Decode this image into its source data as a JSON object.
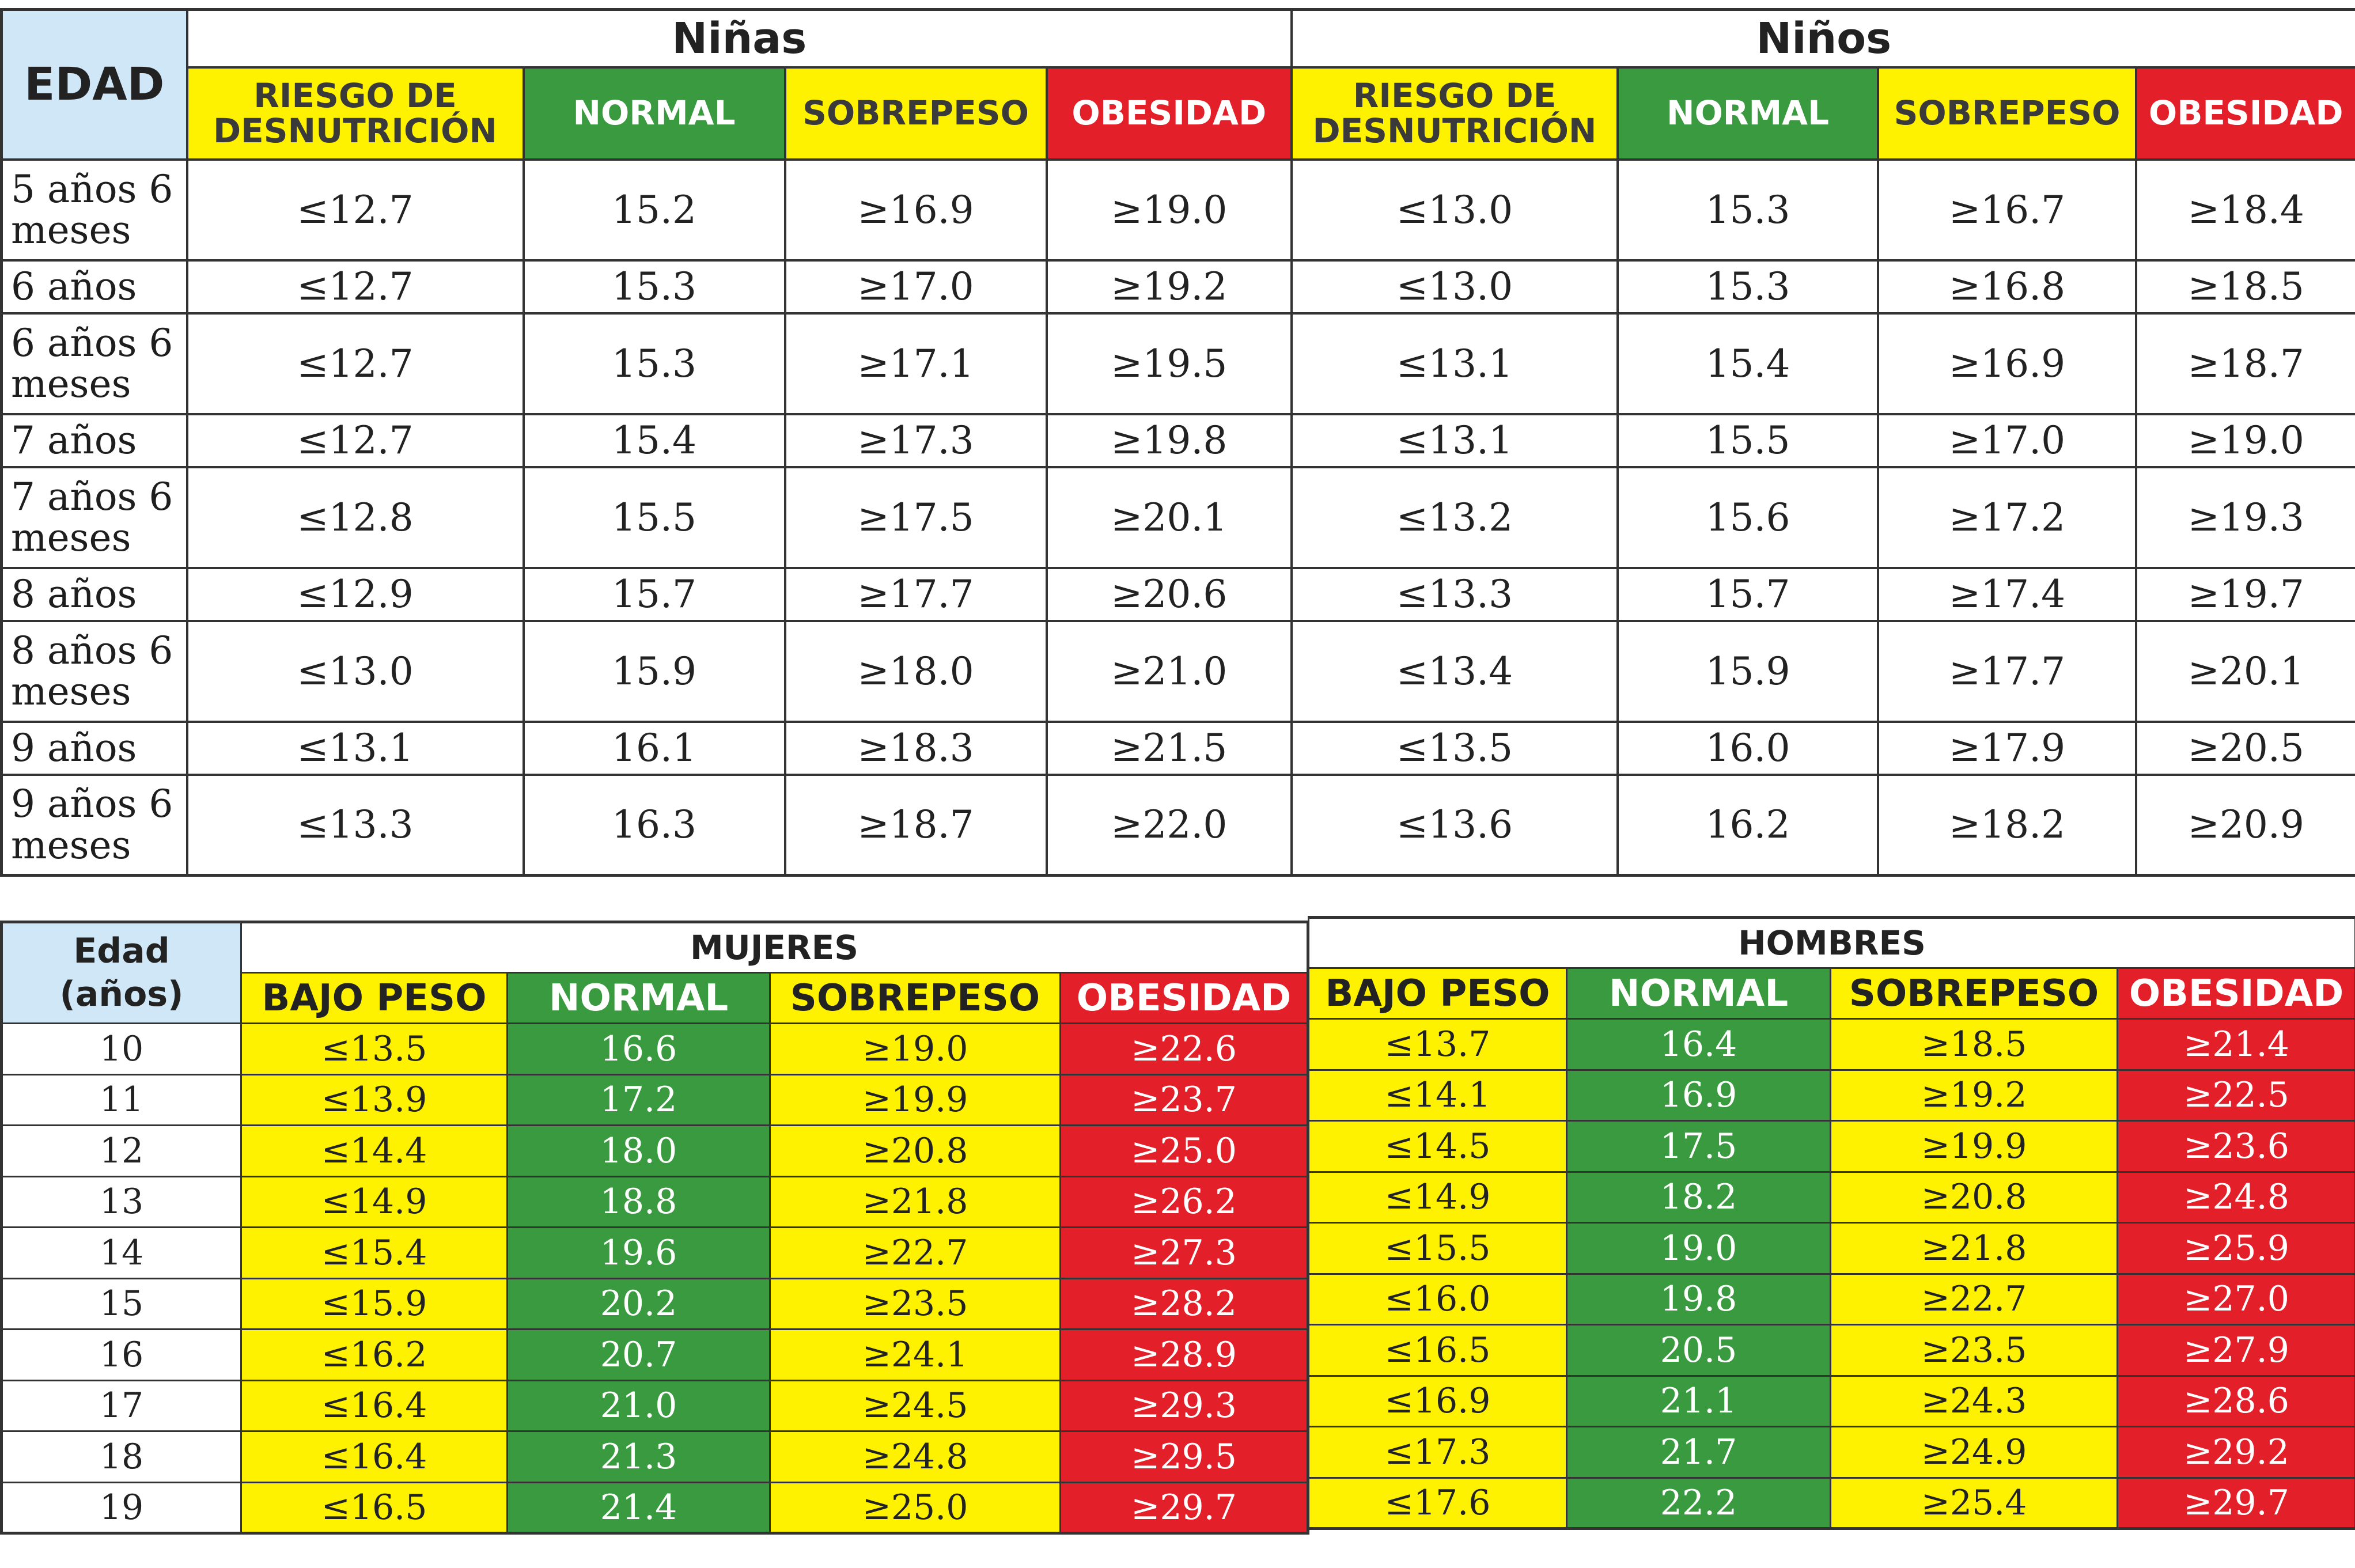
{
  "top": {
    "edad_label": "EDAD",
    "girls": {
      "title": "Niñas",
      "headers": [
        "RIESGO DE DESNUTRICIÓN",
        "NORMAL",
        "SOBREPESO",
        "OBESIDAD"
      ],
      "rows": [
        {
          "age": "5 años 6 meses",
          "values": [
            "≤12.7",
            "15.2",
            "≥16.9",
            "≥19.0"
          ]
        },
        {
          "age": "6 años",
          "values": [
            "≤12.7",
            "15.3",
            "≥17.0",
            "≥19.2"
          ]
        },
        {
          "age": "6 años 6 meses",
          "values": [
            "≤12.7",
            "15.3",
            "≥17.1",
            "≥19.5"
          ]
        },
        {
          "age": "7 años",
          "values": [
            "≤12.7",
            "15.4",
            "≥17.3",
            "≥19.8"
          ]
        },
        {
          "age": "7 años 6 meses",
          "values": [
            "≤12.8",
            "15.5",
            "≥17.5",
            "≥20.1"
          ]
        },
        {
          "age": "8 años",
          "values": [
            "≤12.9",
            "15.7",
            "≥17.7",
            "≥20.6"
          ]
        },
        {
          "age": "8 años 6 meses",
          "values": [
            "≤13.0",
            "15.9",
            "≥18.0",
            "≥21.0"
          ]
        },
        {
          "age": "9 años",
          "values": [
            "≤13.1",
            "16.1",
            "≥18.3",
            "≥21.5"
          ]
        },
        {
          "age": "9 años 6 meses",
          "values": [
            "≤13.3",
            "16.3",
            "≥18.7",
            "≥22.0"
          ]
        }
      ]
    },
    "boys": {
      "title": "Niños",
      "headers": [
        "RIESGO DE DESNUTRICIÓN",
        "NORMAL",
        "SOBREPESO",
        "OBESIDAD"
      ],
      "rows": [
        {
          "values": [
            "≤13.0",
            "15.3",
            "≥16.7",
            "≥18.4"
          ]
        },
        {
          "values": [
            "≤13.0",
            "15.3",
            "≥16.8",
            "≥18.5"
          ]
        },
        {
          "values": [
            "≤13.1",
            "15.4",
            "≥16.9",
            "≥18.7"
          ]
        },
        {
          "values": [
            "≤13.1",
            "15.5",
            "≥17.0",
            "≥19.0"
          ]
        },
        {
          "values": [
            "≤13.2",
            "15.6",
            "≥17.2",
            "≥19.3"
          ]
        },
        {
          "values": [
            "≤13.3",
            "15.7",
            "≥17.4",
            "≥19.7"
          ]
        },
        {
          "values": [
            "≤13.4",
            "15.9",
            "≥17.7",
            "≥20.1"
          ]
        },
        {
          "values": [
            "≤13.5",
            "16.0",
            "≥17.9",
            "≥20.5"
          ]
        },
        {
          "values": [
            "≤13.6",
            "16.2",
            "≥18.2",
            "≥20.9"
          ]
        }
      ]
    }
  },
  "bottom": {
    "edad_label_line1": "Edad",
    "edad_label_line2": "(años)",
    "women": {
      "title": "MUJERES",
      "headers": [
        "BAJO PESO",
        "NORMAL",
        "SOBREPESO",
        "OBESIDAD"
      ],
      "rows": [
        {
          "age": "10",
          "values": [
            "≤13.5",
            "16.6",
            "≥19.0",
            "≥22.6"
          ]
        },
        {
          "age": "11",
          "values": [
            "≤13.9",
            "17.2",
            "≥19.9",
            "≥23.7"
          ]
        },
        {
          "age": "12",
          "values": [
            "≤14.4",
            "18.0",
            "≥20.8",
            "≥25.0"
          ]
        },
        {
          "age": "13",
          "values": [
            "≤14.9",
            "18.8",
            "≥21.8",
            "≥26.2"
          ]
        },
        {
          "age": "14",
          "values": [
            "≤15.4",
            "19.6",
            "≥22.7",
            "≥27.3"
          ]
        },
        {
          "age": "15",
          "values": [
            "≤15.9",
            "20.2",
            "≥23.5",
            "≥28.2"
          ]
        },
        {
          "age": "16",
          "values": [
            "≤16.2",
            "20.7",
            "≥24.1",
            "≥28.9"
          ]
        },
        {
          "age": "17",
          "values": [
            "≤16.4",
            "21.0",
            "≥24.5",
            "≥29.3"
          ]
        },
        {
          "age": "18",
          "values": [
            "≤16.4",
            "21.3",
            "≥24.8",
            "≥29.5"
          ]
        },
        {
          "age": "19",
          "values": [
            "≤16.5",
            "21.4",
            "≥25.0",
            "≥29.7"
          ]
        }
      ]
    },
    "men": {
      "title": "HOMBRES",
      "headers": [
        "BAJO PESO",
        "NORMAL",
        "SOBREPESO",
        "OBESIDAD"
      ],
      "rows": [
        {
          "values": [
            "≤13.7",
            "16.4",
            "≥18.5",
            "≥21.4"
          ]
        },
        {
          "values": [
            "≤14.1",
            "16.9",
            "≥19.2",
            "≥22.5"
          ]
        },
        {
          "values": [
            "≤14.5",
            "17.5",
            "≥19.9",
            "≥23.6"
          ]
        },
        {
          "values": [
            "≤14.9",
            "18.2",
            "≥20.8",
            "≥24.8"
          ]
        },
        {
          "values": [
            "≤15.5",
            "19.0",
            "≥21.8",
            "≥25.9"
          ]
        },
        {
          "values": [
            "≤16.0",
            "19.8",
            "≥22.7",
            "≥27.0"
          ]
        },
        {
          "values": [
            "≤16.5",
            "20.5",
            "≥23.5",
            "≥27.9"
          ]
        },
        {
          "values": [
            "≤16.9",
            "21.1",
            "≥24.3",
            "≥28.6"
          ]
        },
        {
          "values": [
            "≤17.3",
            "21.7",
            "≥24.9",
            "≥29.2"
          ]
        },
        {
          "values": [
            "≤17.6",
            "22.2",
            "≥25.4",
            "≥29.7"
          ]
        }
      ]
    }
  },
  "colors": {
    "risk": "#fff200",
    "normal": "#3a9a3f",
    "overweight": "#fff200",
    "obesity": "#e3202a",
    "age_header": "#cfe7f7"
  }
}
